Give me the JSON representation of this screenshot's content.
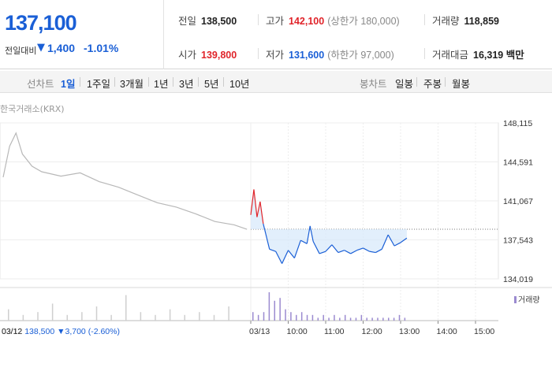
{
  "quote": {
    "price": "137,100",
    "change_label": "전일대비",
    "change_arrow": "▼",
    "change_value": "1,400",
    "change_percent": "-1.01%",
    "stats": {
      "prev_close": {
        "label": "전일",
        "value": "138,500"
      },
      "high": {
        "label": "고가",
        "value": "142,100",
        "sub": "(상한가 180,000)"
      },
      "volume": {
        "label": "거래량",
        "value": "118,859"
      },
      "open": {
        "label": "시가",
        "value": "139,800"
      },
      "low": {
        "label": "저가",
        "value": "131,600",
        "sub": "(하한가 97,000)"
      },
      "amount": {
        "label": "거래대금",
        "value": "16,319 백만"
      }
    }
  },
  "toolbar": {
    "line_label": "선차트",
    "ranges": [
      "1일",
      "1주일",
      "3개월",
      "1년",
      "3년",
      "5년",
      "10년"
    ],
    "active_range": "1일",
    "candle_label": "봉차트",
    "candles": [
      "일봉",
      "주봉",
      "월봉"
    ]
  },
  "exchange_label": "한국거래소(KRX)",
  "volume_legend": "거래량",
  "prev_info": {
    "date": "03/12",
    "close": "138,500",
    "arrow": "▼",
    "change": "3,700",
    "pct": "(-2.60%)"
  },
  "colors": {
    "up": "#e0242a",
    "down": "#1a5fd6",
    "prev_line": "#b8b8b8",
    "volume": "#9b8bd0",
    "fill": "#d6e8fb"
  },
  "chart_data": {
    "type": "line",
    "title": "",
    "ylim": [
      134019,
      148115
    ],
    "yticks": [
      "148,115",
      "144,591",
      "141,067",
      "137,543",
      "134,019"
    ],
    "xticks": [
      "03/12",
      "03/13",
      "10:00",
      "11:00",
      "12:00",
      "13:00",
      "14:00",
      "15:00"
    ],
    "reference_price": 138500,
    "series": [
      {
        "name": "",
        "x": [
          "03/12 09:00",
          "09:10",
          "09:20",
          "09:30",
          "09:45",
          "10:00",
          "10:30",
          "11:00",
          "11:30",
          "12:00",
          "12:30",
          "13:00",
          "13:30",
          "14:00",
          "14:30",
          "15:00",
          "15:20"
        ],
        "values": [
          143200,
          146000,
          147200,
          145300,
          144200,
          143700,
          143300,
          143600,
          142800,
          142300,
          141600,
          140900,
          140500,
          139900,
          139200,
          138900,
          138500
        ]
      },
      {
        "name": "",
        "x": [
          "03/13 09:00",
          "09:05",
          "09:10",
          "09:15",
          "09:20",
          "09:30",
          "09:40",
          "09:50",
          "10:00",
          "10:10",
          "10:20",
          "10:30",
          "10:35",
          "10:40",
          "10:50",
          "11:00",
          "11:10",
          "11:20",
          "11:30",
          "11:40",
          "11:50",
          "12:00",
          "12:10",
          "12:20",
          "12:30",
          "12:40",
          "12:50",
          "13:00",
          "13:10"
        ],
        "values": [
          139800,
          142100,
          139600,
          141000,
          139000,
          136700,
          136500,
          135400,
          136600,
          135900,
          137500,
          137200,
          138800,
          137400,
          136300,
          136500,
          137100,
          136400,
          136600,
          136300,
          136600,
          136800,
          136500,
          136400,
          136700,
          138000,
          137000,
          137300,
          137700
        ]
      }
    ],
    "volume": {
      "name": "거래량",
      "values_relative": [
        0.4,
        0.2,
        0.3,
        0.6,
        0.2,
        0.3,
        0.5,
        0.2,
        0.9,
        0.3,
        0.2,
        0.4,
        0.2,
        0.3,
        0.2,
        0.5,
        0.3,
        0.2,
        0.3,
        1.0,
        0.7,
        0.8,
        0.4,
        0.3,
        0.2,
        0.3,
        0.2,
        0.2,
        0.1,
        0.2,
        0.1,
        0.2,
        0.1,
        0.2,
        0.1,
        0.1,
        0.2,
        0.1,
        0.1,
        0.1,
        0.1,
        0.1,
        0.1,
        0.2,
        0.1
      ]
    }
  }
}
